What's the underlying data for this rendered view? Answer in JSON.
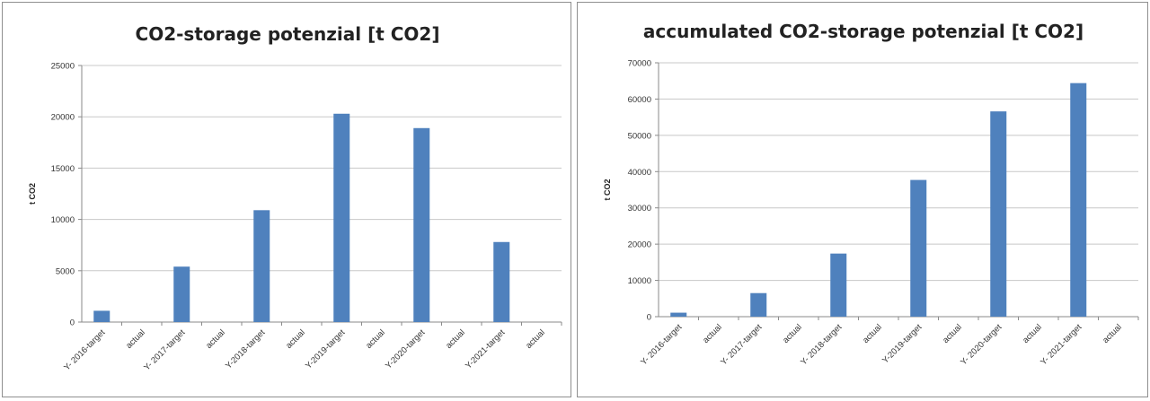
{
  "chart_data": [
    {
      "type": "bar",
      "title": "CO2-storage potenzial [t CO2]",
      "xlabel": "",
      "ylabel": "t CO2",
      "ylim": [
        0,
        25000
      ],
      "yticks": [
        0,
        5000,
        10000,
        15000,
        20000,
        25000
      ],
      "grid": true,
      "legend": "none",
      "color": "#4f81bd",
      "categories": [
        "Y- 2016-target",
        "actual",
        "Y- 2017-target",
        "actual",
        "Y-2018-target",
        "actual",
        "Y-2019-target",
        "actual",
        "Y-2020-target",
        "actual",
        "Y-2021-target",
        "actual"
      ],
      "values": [
        1100,
        0,
        5400,
        0,
        10900,
        0,
        20300,
        0,
        18900,
        0,
        7800,
        0
      ]
    },
    {
      "type": "bar",
      "title": "accumulated CO2-storage potenzial [t CO2]",
      "xlabel": "",
      "ylabel": "t CO2",
      "ylim": [
        0,
        70000
      ],
      "yticks": [
        0,
        10000,
        20000,
        30000,
        40000,
        50000,
        60000,
        70000
      ],
      "grid": true,
      "legend": "none",
      "color": "#4f81bd",
      "categories": [
        "Y- 2016-target",
        "actual",
        "Y- 2017-target",
        "actual",
        "Y- 2018-target",
        "actual",
        "Y-2019-target",
        "actual",
        "Y- 2020-target",
        "actual",
        "Y- 2021-target",
        "actual"
      ],
      "values": [
        1100,
        0,
        6500,
        0,
        17400,
        0,
        37700,
        0,
        56600,
        0,
        64400,
        0
      ]
    }
  ]
}
